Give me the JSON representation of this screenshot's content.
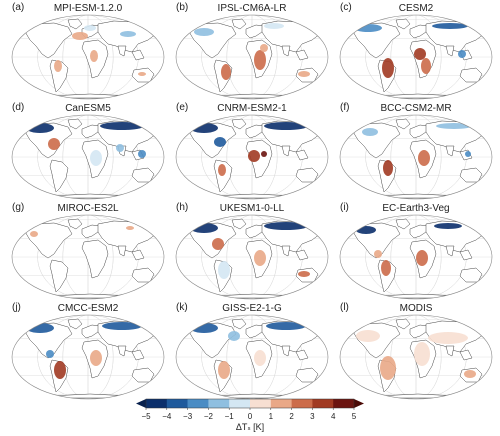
{
  "panels": [
    {
      "letter": "(a)",
      "title": "MPI-ESM-1.2.0"
    },
    {
      "letter": "(b)",
      "title": "IPSL-CM6A-LR"
    },
    {
      "letter": "(c)",
      "title": "CESM2"
    },
    {
      "letter": "(d)",
      "title": "CanESM5"
    },
    {
      "letter": "(e)",
      "title": "CNRM-ESM2-1"
    },
    {
      "letter": "(f)",
      "title": "BCC-CSM2-MR"
    },
    {
      "letter": "(g)",
      "title": "MIROC-ES2L"
    },
    {
      "letter": "(h)",
      "title": "UKESM1-0-LL"
    },
    {
      "letter": "(i)",
      "title": "EC-Earth3-Veg"
    },
    {
      "letter": "(j)",
      "title": "CMCC-ESM2"
    },
    {
      "letter": "(k)",
      "title": "GISS-E2-1-G"
    },
    {
      "letter": "(l)",
      "title": "MODIS"
    }
  ],
  "colorbar": {
    "ticks": [
      "−5",
      "−4",
      "−3",
      "−2",
      "−1",
      "0",
      "1",
      "2",
      "3",
      "4",
      "5"
    ],
    "label": "ΔTₛ [K]",
    "colors": [
      "#0b2f6b",
      "#1f5a9c",
      "#4a8cc4",
      "#8fbfe0",
      "#d4e7f3",
      "#f7dfd2",
      "#e9a887",
      "#cc6c4a",
      "#a13a22",
      "#6b1410"
    ]
  }
}
